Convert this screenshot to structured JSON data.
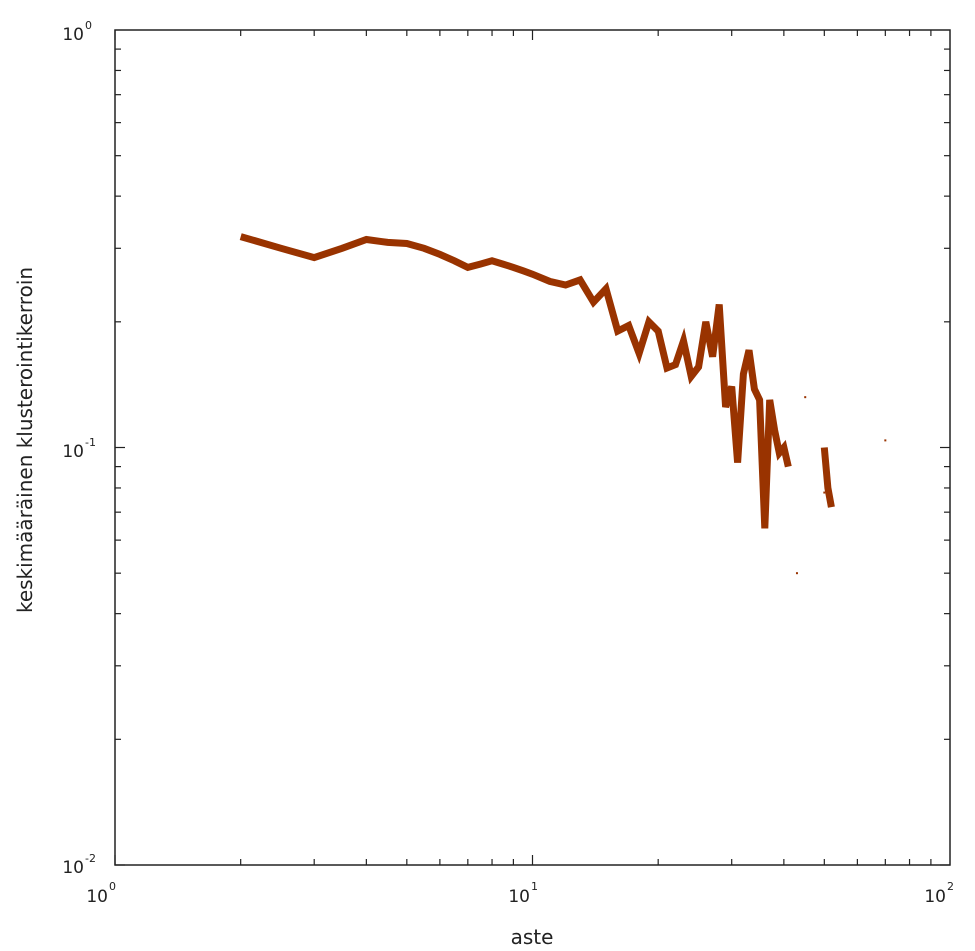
{
  "chart_data": {
    "type": "line",
    "title": "",
    "xlabel": "aste",
    "ylabel": "keskimääräinen klusterointikerroin",
    "xscale": "log",
    "yscale": "log",
    "xlim": [
      1,
      100
    ],
    "ylim": [
      0.01,
      1
    ],
    "grid": false,
    "x_tick_labels": [
      {
        "base": "10",
        "exp": "0"
      },
      {
        "base": "10",
        "exp": "1"
      },
      {
        "base": "10",
        "exp": "2"
      }
    ],
    "y_tick_labels": [
      {
        "base": "10",
        "exp": "-2"
      },
      {
        "base": "10",
        "exp": "-1"
      },
      {
        "base": "10",
        "exp": "0"
      }
    ],
    "series": [
      {
        "color": "#993300",
        "points": [
          [
            2,
            0.32
          ],
          [
            2.5,
            0.3
          ],
          [
            3,
            0.285
          ],
          [
            3.5,
            0.3
          ],
          [
            4,
            0.315
          ],
          [
            4.5,
            0.31
          ],
          [
            5,
            0.308
          ],
          [
            5.5,
            0.3
          ],
          [
            6,
            0.29
          ],
          [
            6.5,
            0.28
          ],
          [
            7,
            0.27
          ],
          [
            7.5,
            0.275
          ],
          [
            8,
            0.28
          ],
          [
            8.5,
            0.275
          ],
          [
            9,
            0.27
          ],
          [
            9.5,
            0.265
          ],
          [
            10,
            0.26
          ],
          [
            11,
            0.25
          ],
          [
            12,
            0.245
          ],
          [
            13,
            0.252
          ],
          [
            14,
            0.223
          ],
          [
            15,
            0.24
          ],
          [
            16,
            0.19
          ],
          [
            17,
            0.196
          ],
          [
            18,
            0.168
          ],
          [
            19,
            0.2
          ],
          [
            20,
            0.19
          ],
          [
            21,
            0.155
          ],
          [
            22,
            0.158
          ],
          [
            23,
            0.18
          ],
          [
            24,
            0.148
          ],
          [
            25,
            0.156
          ],
          [
            26,
            0.2
          ],
          [
            27,
            0.165
          ],
          [
            28,
            0.22
          ],
          [
            29,
            0.125
          ],
          [
            30,
            0.14
          ],
          [
            31,
            0.092
          ],
          [
            32,
            0.15
          ],
          [
            33,
            0.171
          ],
          [
            34,
            0.138
          ],
          [
            35,
            0.13
          ],
          [
            36,
            0.064
          ],
          [
            37,
            0.13
          ],
          [
            38,
            0.11
          ],
          [
            39,
            0.097
          ],
          [
            40,
            0.1
          ],
          [
            41,
            0.09
          ]
        ]
      },
      {
        "color": "#993300",
        "points": [
          [
            50,
            0.1
          ],
          [
            51,
            0.08
          ],
          [
            52,
            0.072
          ]
        ]
      },
      {
        "color": "#993300",
        "markers_only": true,
        "points": [
          [
            45,
            0.132
          ],
          [
            50,
            0.078
          ],
          [
            43,
            0.05
          ],
          [
            70,
            0.104
          ]
        ]
      }
    ]
  }
}
